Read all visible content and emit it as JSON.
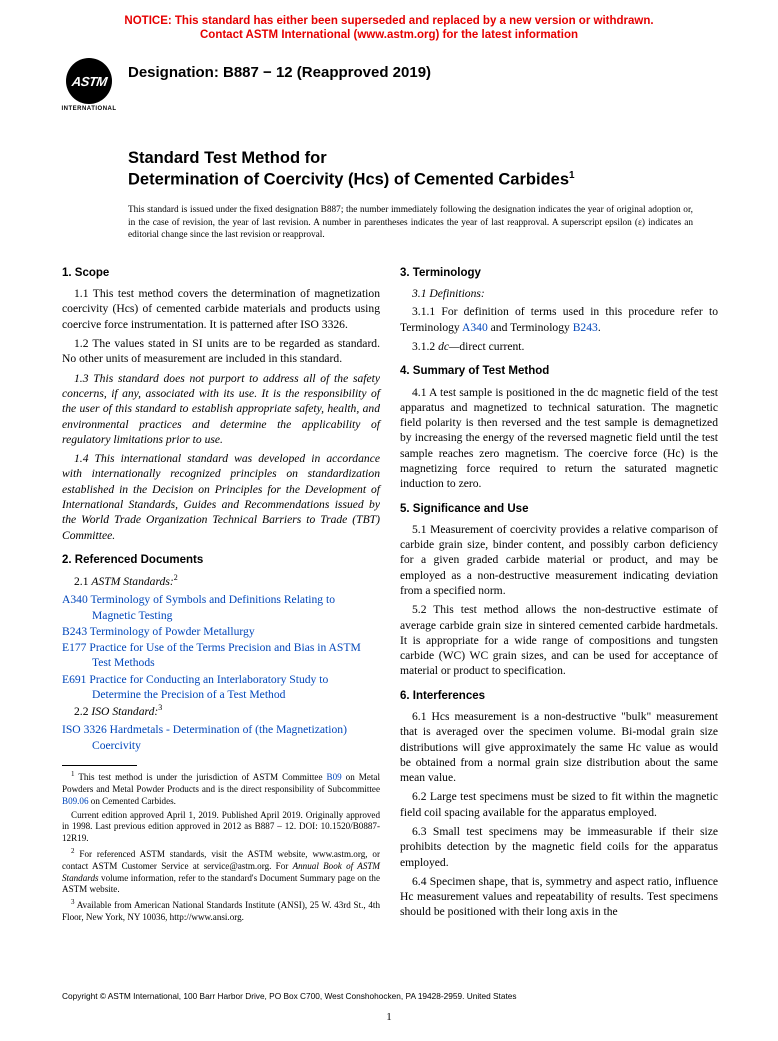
{
  "notice": {
    "line1": "NOTICE: This standard has either been superseded and replaced by a new version or withdrawn.",
    "line2": "Contact ASTM International (www.astm.org) for the latest information",
    "color": "#e60000"
  },
  "logo": {
    "text": "ASTM",
    "subtext": "INTERNATIONAL"
  },
  "designation": "Designation: B887 − 12 (Reapproved 2019)",
  "title": {
    "line1": "Standard Test Method for",
    "line2": "Determination of Coercivity (Hcs) of Cemented Carbides",
    "super": "1"
  },
  "issuance": "This standard is issued under the fixed designation B887; the number immediately following the designation indicates the year of original adoption or, in the case of revision, the year of last revision. A number in parentheses indicates the year of last reapproval. A superscript epsilon (ε) indicates an editorial change since the last revision or reapproval.",
  "link_color": "#0046ba",
  "sections": {
    "s1": {
      "head": "1. Scope",
      "p1": "1.1 This test method covers the determination of magnetization coercivity (Hcs) of cemented carbide materials and products using coercive force instrumentation. It is patterned after ISO 3326.",
      "p2": "1.2 The values stated in SI units are to be regarded as standard. No other units of measurement are included in this standard.",
      "p3": "1.3 This standard does not purport to address all of the safety concerns, if any, associated with its use. It is the responsibility of the user of this standard to establish appropriate safety, health, and environmental practices and determine the applicability of regulatory limitations prior to use.",
      "p4": "1.4 This international standard was developed in accordance with internationally recognized principles on standardization established in the Decision on Principles for the Development of International Standards, Guides and Recommendations issued by the World Trade Organization Technical Barriers to Trade (TBT) Committee."
    },
    "s2": {
      "head": "2. Referenced Documents",
      "sub1_pre": "2.1 ",
      "sub1_ital": "ASTM Standards:",
      "sub1_sup": "2",
      "refs_astm": [
        {
          "code": "A340",
          "title": " Terminology of Symbols and Definitions Relating to Magnetic Testing"
        },
        {
          "code": "B243",
          "title": " Terminology of Powder Metallurgy"
        },
        {
          "code": "E177",
          "title": " Practice for Use of the Terms Precision and Bias in ASTM Test Methods"
        },
        {
          "code": "E691",
          "title": " Practice for Conducting an Interlaboratory Study to Determine the Precision of a Test Method"
        }
      ],
      "sub2_pre": "2.2 ",
      "sub2_ital": "ISO Standard:",
      "sub2_sup": "3",
      "refs_iso": [
        {
          "code": "ISO 3326",
          "title": " Hardmetals - Determination of (the Magnetization) Coercivity"
        }
      ]
    },
    "s3": {
      "head": "3. Terminology",
      "p1": "3.1 Definitions:",
      "p2_a": "3.1.1 For definition of terms used in this procedure refer to Terminology ",
      "p2_l1": "A340",
      "p2_b": " and Terminology ",
      "p2_l2": "B243",
      "p2_c": ".",
      "p3_a": "3.1.2 ",
      "p3_ital": "dc—",
      "p3_b": "direct current."
    },
    "s4": {
      "head": "4. Summary of Test Method",
      "p1": "4.1 A test sample is positioned in the dc magnetic field of the test apparatus and magnetized to technical saturation. The magnetic field polarity is then reversed and the test sample is demagnetized by increasing the energy of the reversed magnetic field until the test sample reaches zero magnetism. The coercive force (Hc) is the magnetizing force required to return the saturated magnetic induction to zero."
    },
    "s5": {
      "head": "5. Significance and Use",
      "p1": "5.1 Measurement of coercivity provides a relative comparison of carbide grain size, binder content, and possibly carbon deficiency for a given graded carbide material or product, and may be employed as a non-destructive measurement indicating deviation from a specified norm.",
      "p2": "5.2 This test method allows the non-destructive estimate of average carbide grain size in sintered cemented carbide hardmetals. It is appropriate for a wide range of compositions and tungsten carbide (WC) WC grain sizes, and can be used for acceptance of material or product to specification."
    },
    "s6": {
      "head": "6. Interferences",
      "p1": "6.1 Hcs measurement is a non-destructive \"bulk\" measurement that is averaged over the specimen volume. Bi-modal grain size distributions will give approximately the same Hc value as would be obtained from a normal grain size distribution about the same mean value.",
      "p2": "6.2 Large test specimens must be sized to fit within the magnetic field coil spacing available for the apparatus employed.",
      "p3": "6.3 Small test specimens may be immeasurable if their size prohibits detection by the magnetic field coils for the apparatus employed.",
      "p4": "6.4 Specimen shape, that is, symmetry and aspect ratio, influence Hc measurement values and repeatability of results. Test specimens should be positioned with their long axis in the"
    }
  },
  "footnotes": {
    "f1_a": " This test method is under the jurisdiction of ASTM Committee ",
    "f1_l1": "B09",
    "f1_b": " on Metal Powders and Metal Powder Products and is the direct responsibility of Subcommittee ",
    "f1_l2": "B09.06",
    "f1_c": " on Cemented Carbides.",
    "f1p2": "Current edition approved April 1, 2019. Published April 2019. Originally approved in 1998. Last previous edition approved in 2012 as B887 – 12. DOI: 10.1520/B0887-12R19.",
    "f2_a": " For referenced ASTM standards, visit the ASTM website, www.astm.org, or contact ASTM Customer Service at service@astm.org. For ",
    "f2_ital": "Annual Book of ASTM Standards",
    "f2_b": " volume information, refer to the standard's Document Summary page on the ASTM website.",
    "f3": " Available from American National Standards Institute (ANSI), 25 W. 43rd St., 4th Floor, New York, NY 10036, http://www.ansi.org."
  },
  "copyright": "Copyright © ASTM International, 100 Barr Harbor Drive, PO Box C700, West Conshohocken, PA 19428-2959. United States",
  "page_number": "1"
}
